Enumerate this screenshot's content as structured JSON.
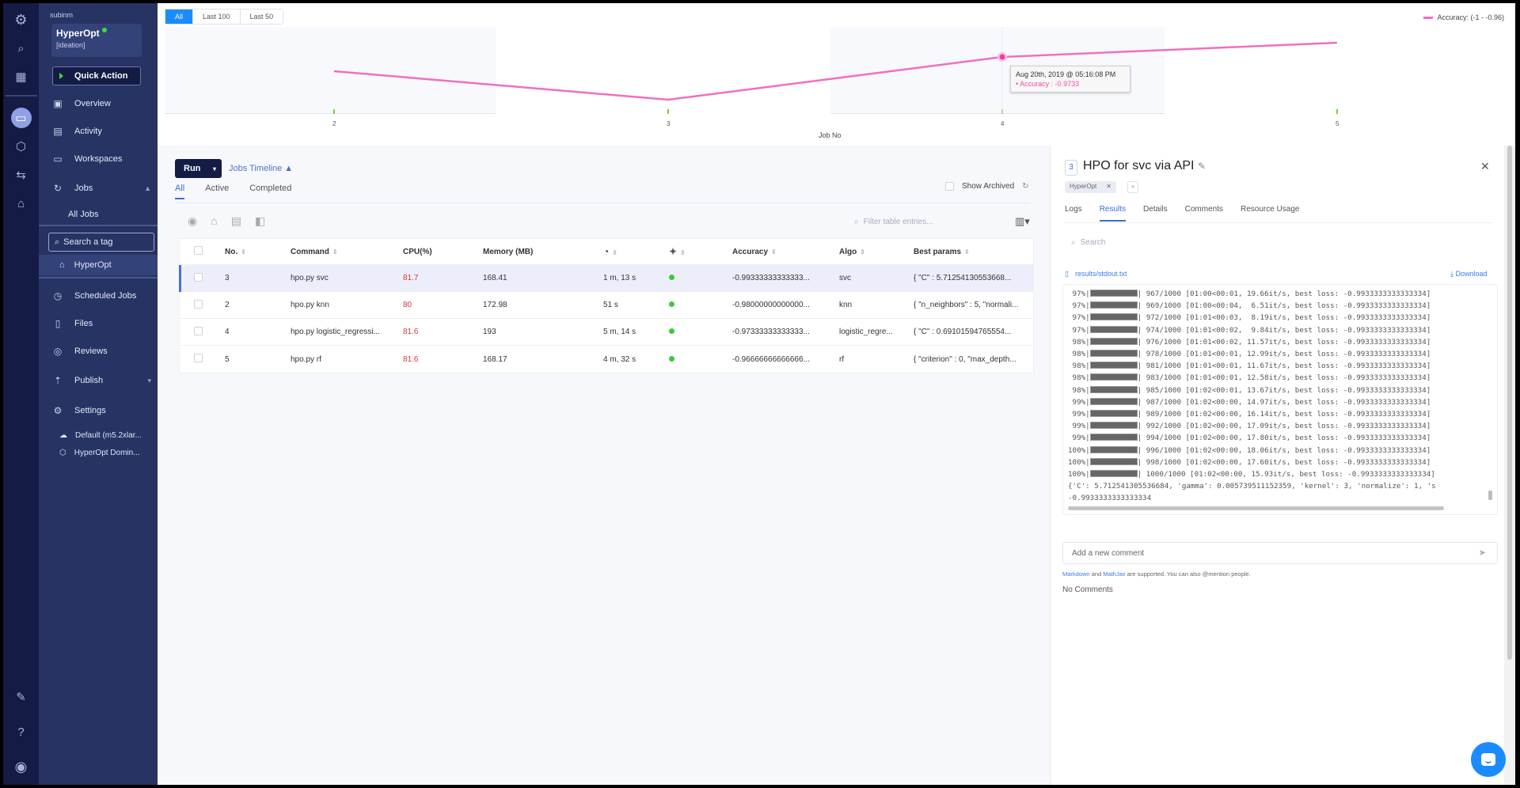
{
  "sidebar": {
    "org": "subinm",
    "project_name": "HyperOpt",
    "project_status_color": "#3ddc3d",
    "project_tag": "[ideation]",
    "quick_action": "Quick Action",
    "items": [
      {
        "label": "Overview",
        "icon": "overview-icon"
      },
      {
        "label": "Activity",
        "icon": "activity-icon"
      },
      {
        "label": "Workspaces",
        "icon": "monitor-icon"
      },
      {
        "label": "Jobs",
        "icon": "jobs-icon"
      },
      {
        "label": "All Jobs"
      },
      {
        "label": "Scheduled Jobs",
        "icon": "clock-icon"
      },
      {
        "label": "Files",
        "icon": "file-icon"
      },
      {
        "label": "Reviews",
        "icon": "eye-icon"
      },
      {
        "label": "Publish",
        "icon": "publish-icon"
      },
      {
        "label": "Settings",
        "icon": "settings-icon"
      }
    ],
    "tag_search_placeholder": "Search a tag",
    "selected_tag": "HyperOpt",
    "settings_sub": [
      "Default (m5.2xlar...",
      "HyperOpt Domin..."
    ]
  },
  "chart_data": {
    "type": "line",
    "title": "",
    "xlabel": "Job No",
    "ylabel": "",
    "x": [
      2,
      3,
      4,
      5
    ],
    "series": [
      {
        "name": "Accuracy: (-1 - -0.96)",
        "values": [
          -0.98,
          -0.9933,
          -0.9733,
          -0.9667
        ],
        "color": "#f06fc0"
      }
    ],
    "range_buttons": [
      "All",
      "Last 100",
      "Last 50"
    ],
    "selected_range": "All",
    "legend": "Accuracy: (-1 - -0.96)",
    "legend_position": "top-right",
    "tooltip": {
      "date": "Aug 20th, 2019 @ 05:16:08 PM",
      "value": "• Accuracy : -0.9733"
    }
  },
  "main": {
    "run_label": "Run",
    "timeline_label": "Jobs Timeline ▲",
    "tabs": [
      "All",
      "Active",
      "Completed"
    ],
    "show_archived": "Show Archived",
    "filter_placeholder": "Filter table entries...",
    "columns": [
      "No.",
      "Command",
      "CPU(%)",
      "Memory (MB)",
      "",
      "",
      "Accuracy",
      "Algo",
      "Best params"
    ],
    "rows": [
      {
        "no": "3",
        "command": "hpo.py svc",
        "cpu": "81.7",
        "mem": "168.41",
        "dur": "1 m, 13 s",
        "acc": "-0.99333333333333...",
        "algo": "svc",
        "params": "{ \"C\" : 5.71254130553668..."
      },
      {
        "no": "2",
        "command": "hpo.py knn",
        "cpu": "80",
        "mem": "172.98",
        "dur": "51 s",
        "acc": "-0.98000000000000...",
        "algo": "knn",
        "params": "{ \"n_neighbors\" : 5, \"normali..."
      },
      {
        "no": "4",
        "command": "hpo.py logistic_regressi...",
        "cpu": "81.6",
        "mem": "193",
        "dur": "5 m, 14 s",
        "acc": "-0.97333333333333...",
        "algo": "logistic_regre...",
        "params": "{ \"C\" : 0.69101594765554..."
      },
      {
        "no": "5",
        "command": "hpo.py rf",
        "cpu": "81.6",
        "mem": "168.17",
        "dur": "4 m, 32 s",
        "acc": "-0.96666666666666...",
        "algo": "rf",
        "params": "{ \"criterion\" : 0, \"max_depth..."
      }
    ]
  },
  "detail": {
    "number": "3",
    "title": "HPO for svc via API",
    "tag": "HyperOpt",
    "tabs": [
      "Logs",
      "Results",
      "Details",
      "Comments",
      "Resource Usage"
    ],
    "active_tab": "Results",
    "search_placeholder": "Search",
    "file": "results/stdout.txt",
    "download": "Download",
    "log_lines": [
      [
        " 97%",
        "| 967/1000 [01:00<00:01, 19.66it/s, best loss: -0.9933333333333334]"
      ],
      [
        " 97%",
        "| 969/1000 [01:00<00:04,  6.51it/s, best loss: -0.9933333333333334]"
      ],
      [
        " 97%",
        "| 972/1000 [01:01<00:03,  8.19it/s, best loss: -0.9933333333333334]"
      ],
      [
        " 97%",
        "| 974/1000 [01:01<00:02,  9.84it/s, best loss: -0.9933333333333334]"
      ],
      [
        " 98%",
        "| 976/1000 [01:01<00:02, 11.57it/s, best loss: -0.9933333333333334]"
      ],
      [
        " 98%",
        "| 978/1000 [01:01<00:01, 12.99it/s, best loss: -0.9933333333333334]"
      ],
      [
        " 98%",
        "| 981/1000 [01:01<00:01, 11.67it/s, best loss: -0.9933333333333334]"
      ],
      [
        " 98%",
        "| 983/1000 [01:01<00:01, 12.58it/s, best loss: -0.9933333333333334]"
      ],
      [
        " 98%",
        "| 985/1000 [01:02<00:01, 13.67it/s, best loss: -0.9933333333333334]"
      ],
      [
        " 99%",
        "| 987/1000 [01:02<00:00, 14.97it/s, best loss: -0.9933333333333334]"
      ],
      [
        " 99%",
        "| 989/1000 [01:02<00:00, 16.14it/s, best loss: -0.9933333333333334]"
      ],
      [
        " 99%",
        "| 992/1000 [01:02<00:00, 17.09it/s, best loss: -0.9933333333333334]"
      ],
      [
        " 99%",
        "| 994/1000 [01:02<00:00, 17.80it/s, best loss: -0.9933333333333334]"
      ],
      [
        "100%",
        "| 996/1000 [01:02<00:00, 18.06it/s, best loss: -0.9933333333333334]"
      ],
      [
        "100%",
        "| 998/1000 [01:02<00:00, 17.60it/s, best loss: -0.9933333333333334]"
      ],
      [
        "100%",
        "| 1000/1000 [01:02<00:00, 15.93it/s, best loss: -0.9933333333333334]"
      ]
    ],
    "result_line": "{'C': 5.712541305536684, 'gamma': 0.005739511152359, 'kernel': 3, 'normalize': 1, 's",
    "result_value": "-0.9933333333333334",
    "comment_placeholder": "Add a new comment",
    "md_link": "Markdown",
    "md_and": " and ",
    "mj_link": "MathJax",
    "md_rest": " are supported. You can also @mention people.",
    "no_comments": "No Comments"
  }
}
